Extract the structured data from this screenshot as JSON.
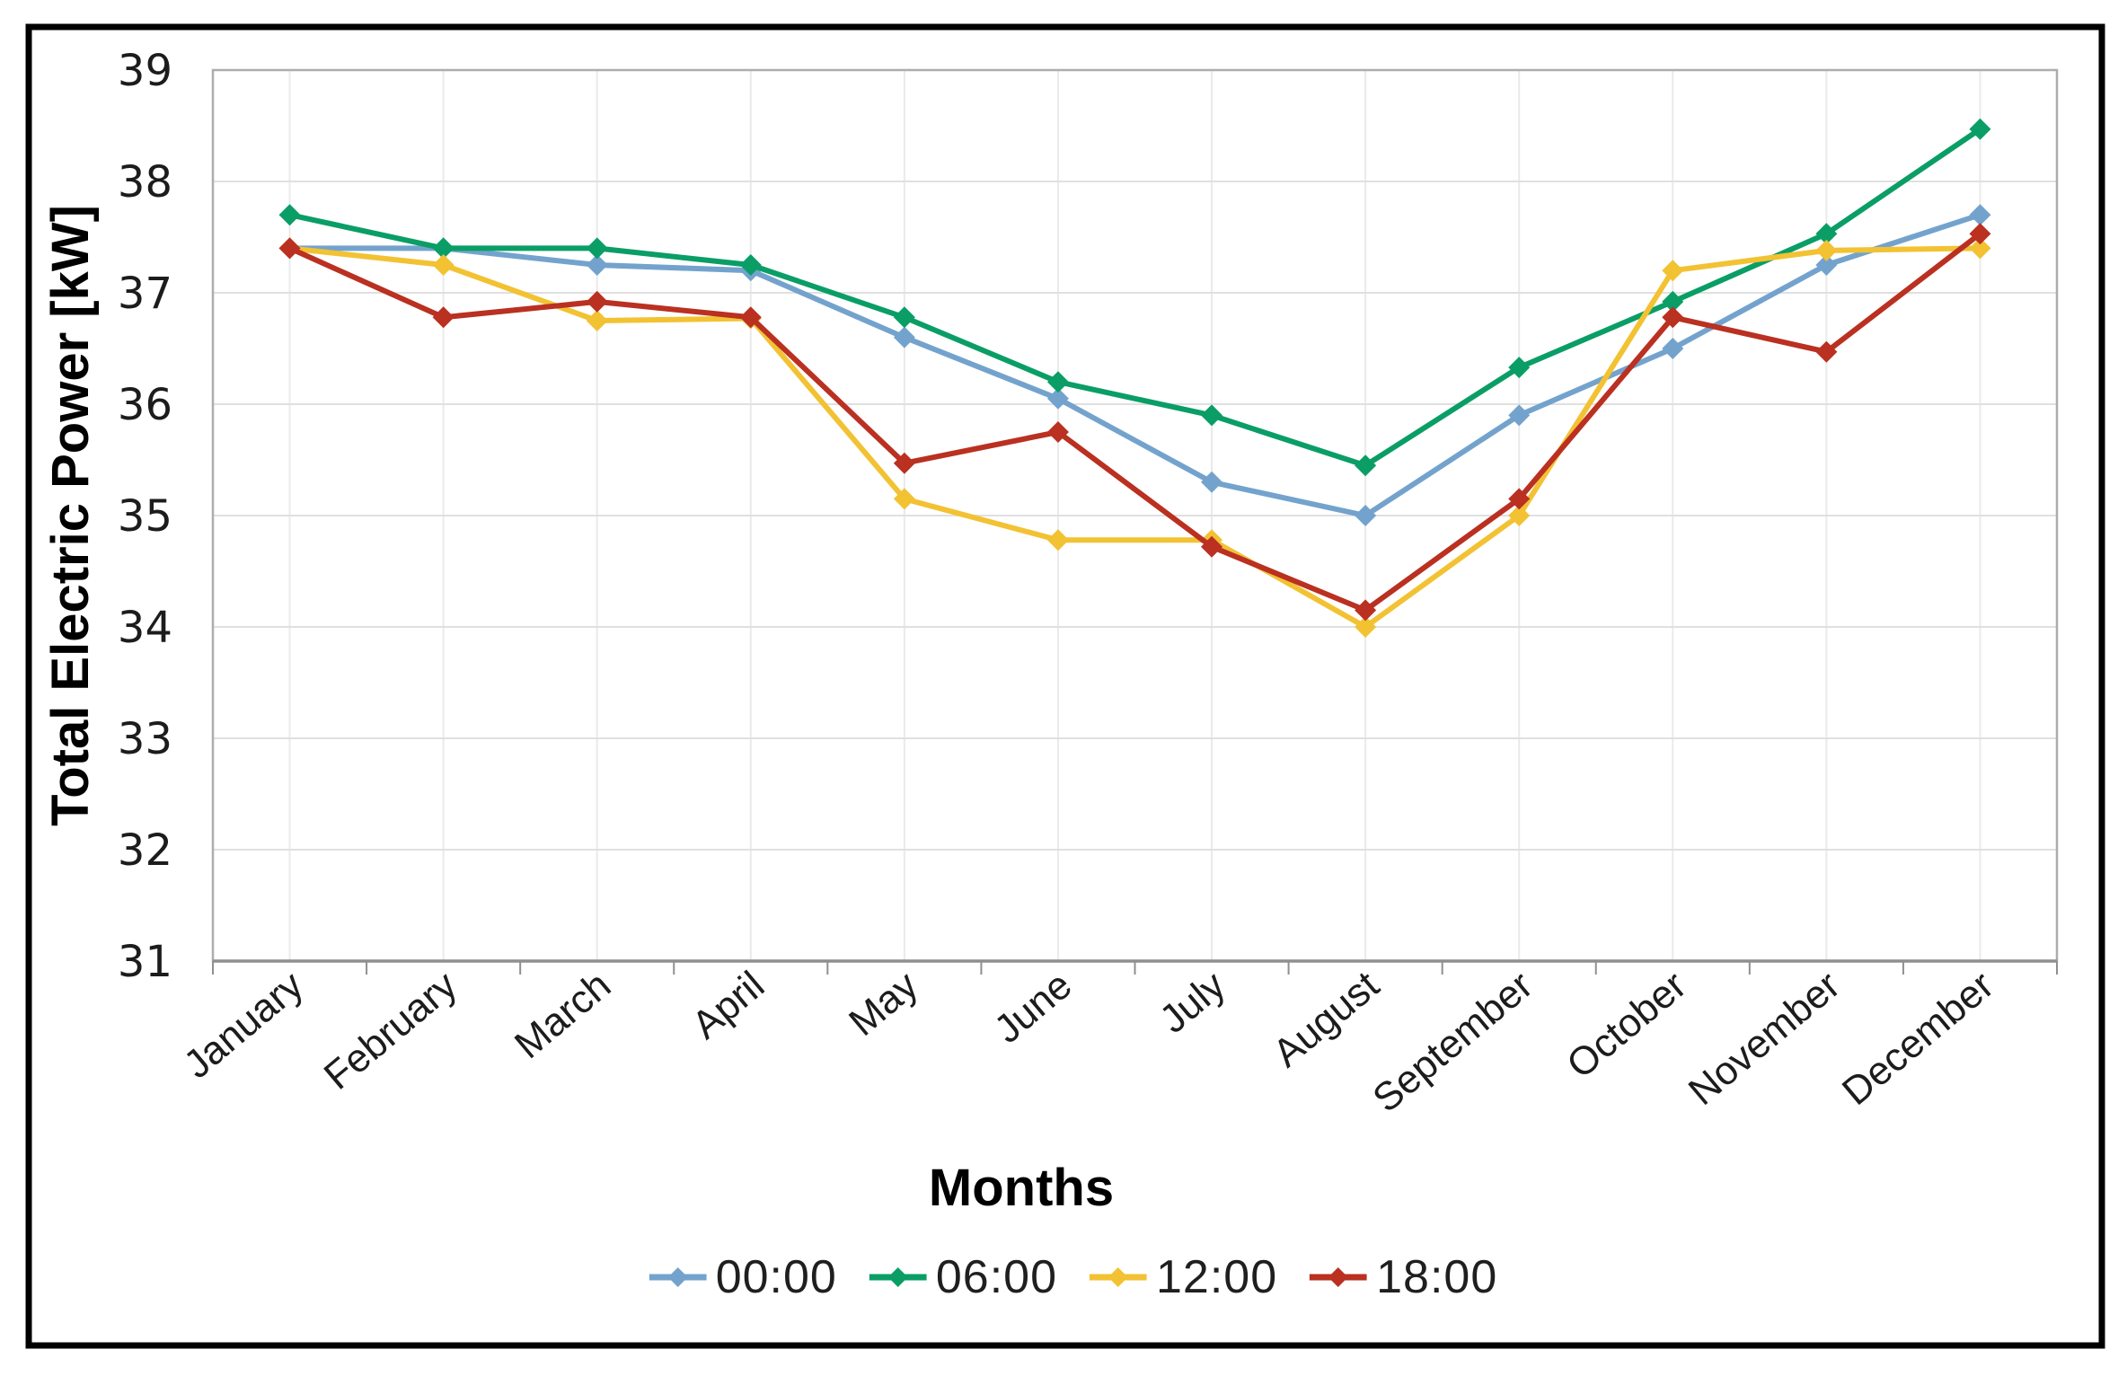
{
  "chart_data": {
    "type": "line",
    "title": "",
    "xlabel": "Months",
    "ylabel": "Total Electric Power [kW]",
    "ylim": [
      31,
      39
    ],
    "yticks": [
      39,
      38,
      37,
      36,
      35,
      34,
      33,
      32,
      31
    ],
    "grid": true,
    "marker": "diamond",
    "legend_position": "bottom",
    "categories": [
      "January",
      "February",
      "March",
      "April",
      "May",
      "June",
      "July",
      "August",
      "September",
      "October",
      "November",
      "December"
    ],
    "series": [
      {
        "name": "00:00",
        "color": "#73a3cd",
        "values": [
          37.4,
          37.4,
          37.25,
          37.2,
          36.6,
          36.05,
          35.3,
          35.0,
          35.9,
          36.5,
          37.25,
          37.7
        ]
      },
      {
        "name": "06:00",
        "color": "#0a9e66",
        "values": [
          37.7,
          37.4,
          37.4,
          37.25,
          36.78,
          36.2,
          35.9,
          35.45,
          36.33,
          36.92,
          37.53,
          38.47
        ]
      },
      {
        "name": "12:00",
        "color": "#f2c233",
        "values": [
          37.4,
          37.25,
          36.75,
          36.77,
          35.15,
          34.78,
          34.78,
          34.0,
          35.0,
          37.2,
          37.38,
          37.4
        ]
      },
      {
        "name": "18:00",
        "color": "#ba3021",
        "values": [
          37.4,
          36.78,
          36.92,
          36.78,
          35.47,
          35.75,
          34.72,
          34.15,
          35.15,
          36.78,
          36.47,
          37.53
        ]
      }
    ]
  },
  "style": {
    "frame_color": "#000000",
    "plot_border_color": "#adadad",
    "axis_line_color": "#8f8f8f",
    "gridline_color": "#e0e0e0",
    "vgridline_color": "#eaeaea",
    "tick_color": "#8f8f8f",
    "text_color": "#1c1c1c"
  }
}
